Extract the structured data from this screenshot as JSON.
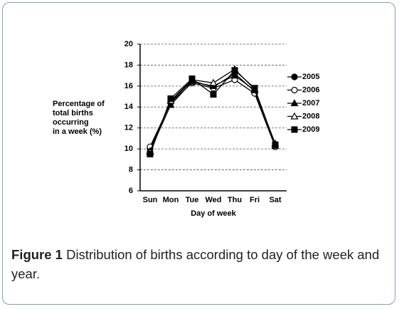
{
  "chart_data": {
    "type": "line",
    "y_label_lines": [
      "Percentage of",
      "total births",
      "occurring",
      "in a week (%)"
    ],
    "x_label": "Day of week",
    "categories": [
      "Sun",
      "Mon",
      "Tue",
      "Wed",
      "Thu",
      "Fri",
      "Sat"
    ],
    "series": [
      {
        "name": "2005",
        "color": "#000000",
        "marker": "circle-filled",
        "values": [
          10.0,
          14.5,
          16.5,
          15.9,
          17.2,
          15.5,
          10.4
        ]
      },
      {
        "name": "2006",
        "color": "#000000",
        "marker": "circle-open",
        "values": [
          10.2,
          14.4,
          16.3,
          15.8,
          16.6,
          15.3,
          10.2
        ]
      },
      {
        "name": "2007",
        "color": "#000000",
        "marker": "triangle-filled",
        "values": [
          9.8,
          14.2,
          16.4,
          16.0,
          17.0,
          15.6,
          10.5
        ]
      },
      {
        "name": "2008",
        "color": "#000000",
        "marker": "triangle-open",
        "values": [
          9.7,
          14.6,
          16.6,
          16.3,
          17.6,
          15.7,
          10.3
        ]
      },
      {
        "name": "2009",
        "color": "#000000",
        "marker": "square-filled",
        "values": [
          9.5,
          14.8,
          16.7,
          15.2,
          17.5,
          15.8,
          10.4
        ]
      }
    ],
    "ylim": [
      6,
      20
    ],
    "yticks": [
      6,
      8,
      10,
      12,
      14,
      16,
      18,
      20
    ],
    "grid": true,
    "legend": "right"
  },
  "caption": {
    "label": "Figure 1",
    "text": "Distribution of births according to day of the week and year."
  }
}
